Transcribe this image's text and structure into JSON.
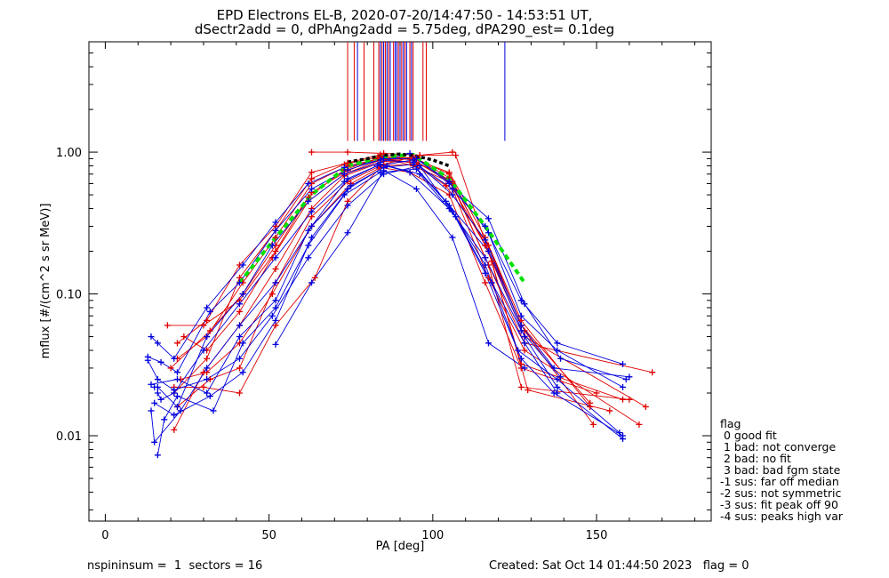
{
  "title": {
    "line1": "EPD Electrons EL-B, 2020-07-20/14:47:50 - 14:53:51 UT,",
    "line2": "dSectr2add = 0, dPhAng2add = 5.75deg, dPA290_est=   0.1deg"
  },
  "footer": {
    "left": "nspininsum =  1  sectors = 16",
    "right": "Created: Sat Oct 14 01:44:50 2023   flag = 0"
  },
  "legend": {
    "title": "flag",
    "items": [
      " 0 good fit",
      " 1 bad: not converge",
      " 2 bad: no fit",
      " 3 bad: bad fgm state",
      "-1 sus: far off median",
      "-2 sus: not symmetric",
      "-3 sus: fit peak off 90",
      "-4 sus: peaks high var"
    ]
  },
  "chart_data": {
    "type": "line",
    "xlabel": "PA [deg]",
    "ylabel": "mflux [#/(cm^2 s sr MeV)]",
    "xlim": [
      -5,
      185
    ],
    "ylim": [
      0.0025,
      6.0
    ],
    "yscale": "log",
    "xticks": [
      "0",
      "50",
      "100",
      "150"
    ],
    "xtick_values": [
      0,
      50,
      100,
      150
    ],
    "yticks": [
      "0.01",
      "0.10",
      "1.00"
    ],
    "ytick_values": [
      0.01,
      0.1,
      1.0
    ],
    "colors": {
      "red": "#e00000",
      "blue": "#0000dd",
      "green": "#00e000",
      "black": "#000000"
    },
    "marker_lines": {
      "y_range": [
        1.2,
        6.0
      ],
      "red_x": [
        74,
        76,
        79,
        82,
        83.5,
        84.5,
        85.5,
        86.5,
        88,
        89.5,
        90.5,
        91.5,
        93,
        94,
        97,
        98
      ],
      "blue_x": [
        77,
        84,
        85,
        86,
        87,
        88.5,
        89,
        90,
        91,
        92,
        93.5,
        122
      ]
    },
    "series": [
      {
        "color": "red",
        "x": [
          22,
          31,
          41,
          52,
          63,
          74,
          84,
          94,
          105,
          116,
          127,
          148
        ],
        "values": [
          0.045,
          0.065,
          0.16,
          0.3,
          0.72,
          0.84,
          0.96,
          0.9,
          0.72,
          0.25,
          0.065,
          0.016
        ]
      },
      {
        "color": "red",
        "x": [
          21,
          31,
          41,
          52,
          63,
          73,
          84,
          94,
          106,
          117,
          127,
          158
        ],
        "values": [
          0.02,
          0.035,
          0.13,
          0.28,
          0.65,
          0.82,
          0.93,
          0.88,
          0.62,
          0.2,
          0.032,
          0.018
        ]
      },
      {
        "color": "red",
        "x": [
          20,
          32,
          42,
          52,
          63,
          74,
          83,
          94,
          105,
          116,
          128,
          165
        ],
        "values": [
          0.03,
          0.055,
          0.1,
          0.22,
          0.52,
          0.74,
          0.9,
          0.92,
          0.7,
          0.22,
          0.05,
          0.016
        ]
      },
      {
        "color": "red",
        "x": [
          24,
          31,
          41,
          51,
          62,
          73,
          84,
          95,
          105,
          116,
          128,
          167
        ],
        "values": [
          0.05,
          0.04,
          0.075,
          0.18,
          0.45,
          0.7,
          0.88,
          0.9,
          0.66,
          0.18,
          0.045,
          0.028
        ]
      },
      {
        "color": "red",
        "x": [
          21,
          30,
          41,
          52,
          63,
          73,
          85,
          95,
          106,
          117,
          127,
          160
        ],
        "values": [
          0.011,
          0.028,
          0.06,
          0.15,
          0.4,
          0.68,
          0.86,
          0.85,
          0.6,
          0.16,
          0.022,
          0.018
        ]
      },
      {
        "color": "red",
        "x": [
          22,
          32,
          41,
          52,
          63,
          74,
          84,
          95,
          106,
          117,
          128,
          163
        ],
        "values": [
          0.016,
          0.025,
          0.03,
          0.12,
          0.35,
          0.62,
          0.8,
          0.82,
          0.55,
          0.13,
          0.04,
          0.012
        ]
      },
      {
        "color": "red",
        "x": [
          19,
          30,
          41,
          52,
          62,
          73,
          84,
          94,
          105,
          117,
          128,
          149
        ],
        "values": [
          0.06,
          0.06,
          0.09,
          0.2,
          0.48,
          0.75,
          0.92,
          0.8,
          0.62,
          0.2,
          0.055,
          0.012
        ]
      },
      {
        "color": "red",
        "x": [
          23,
          31,
          41,
          51,
          63,
          75,
          84,
          93,
          105,
          116,
          127,
          150
        ],
        "values": [
          0.025,
          0.028,
          0.045,
          0.1,
          0.3,
          0.6,
          0.78,
          0.72,
          0.5,
          0.12,
          0.03,
          0.02
        ]
      },
      {
        "color": "red",
        "x": [
          21,
          30,
          41,
          52,
          64,
          74,
          85,
          96,
          107,
          118,
          129,
          154
        ],
        "values": [
          0.022,
          0.022,
          0.02,
          0.06,
          0.13,
          0.45,
          0.82,
          0.95,
          0.95,
          0.17,
          0.021,
          0.015
        ]
      },
      {
        "color": "red",
        "x": [
          22,
          31,
          42,
          52,
          63,
          74,
          84,
          93,
          104,
          117,
          127,
          148
        ],
        "values": [
          0.035,
          0.05,
          0.12,
          0.25,
          0.6,
          0.8,
          0.9,
          0.85,
          0.58,
          0.22,
          0.06,
          0.017
        ]
      },
      {
        "color": "red",
        "x": [
          63,
          74,
          85,
          96,
          106
        ],
        "values": [
          1.0,
          1.0,
          0.98,
          0.95,
          1.0
        ]
      },
      {
        "color": "blue",
        "x": [
          14,
          16,
          21,
          31,
          42,
          52,
          62,
          73,
          84,
          94,
          106,
          116,
          127,
          138,
          158
        ],
        "values": [
          0.05,
          0.045,
          0.035,
          0.08,
          0.16,
          0.32,
          0.6,
          0.78,
          0.88,
          0.85,
          0.55,
          0.3,
          0.09,
          0.045,
          0.032
        ]
      },
      {
        "color": "blue",
        "x": [
          13,
          17,
          22,
          32,
          41,
          52,
          63,
          74,
          85,
          95,
          105,
          117,
          128,
          139,
          159
        ],
        "values": [
          0.036,
          0.033,
          0.028,
          0.075,
          0.12,
          0.28,
          0.55,
          0.75,
          0.9,
          0.9,
          0.6,
          0.34,
          0.085,
          0.035,
          0.025
        ]
      },
      {
        "color": "blue",
        "x": [
          15,
          16,
          22,
          31,
          42,
          51,
          62,
          73,
          84,
          93,
          105,
          117,
          127,
          138,
          158
        ],
        "values": [
          0.022,
          0.022,
          0.016,
          0.05,
          0.1,
          0.22,
          0.45,
          0.7,
          0.85,
          0.98,
          0.62,
          0.27,
          0.07,
          0.04,
          0.022
        ]
      },
      {
        "color": "blue",
        "x": [
          16,
          17,
          21,
          30,
          41,
          52,
          63,
          73,
          83,
          94,
          106,
          116,
          127,
          137,
          160
        ],
        "values": [
          0.02,
          0.018,
          0.02,
          0.04,
          0.085,
          0.18,
          0.38,
          0.62,
          0.8,
          0.88,
          0.5,
          0.24,
          0.06,
          0.03,
          0.026
        ]
      },
      {
        "color": "blue",
        "x": [
          14,
          15,
          23,
          31,
          41,
          52,
          63,
          74,
          85,
          94,
          104,
          117,
          128,
          138,
          158
        ],
        "values": [
          0.015,
          0.009,
          0.015,
          0.03,
          0.06,
          0.12,
          0.3,
          0.55,
          0.78,
          0.82,
          0.45,
          0.2,
          0.05,
          0.022,
          0.0095
        ]
      },
      {
        "color": "blue",
        "x": [
          16,
          18,
          22,
          33,
          42,
          52,
          62,
          73,
          84,
          95,
          105,
          116,
          126,
          138,
          157
        ],
        "values": [
          0.0073,
          0.013,
          0.019,
          0.015,
          0.045,
          0.08,
          0.22,
          0.5,
          0.72,
          0.76,
          0.42,
          0.16,
          0.04,
          0.025,
          0.0105
        ]
      },
      {
        "color": "blue",
        "x": [
          13,
          16,
          21,
          31,
          41,
          51,
          62,
          74,
          85,
          96,
          106,
          116,
          127,
          137,
          158
        ],
        "values": [
          0.034,
          0.025,
          0.021,
          0.025,
          0.035,
          0.07,
          0.18,
          0.42,
          0.7,
          0.8,
          0.38,
          0.14,
          0.035,
          0.02,
          0.01
        ]
      },
      {
        "color": "blue",
        "x": [
          52,
          63,
          74,
          85,
          95,
          106,
          117,
          128
        ],
        "values": [
          0.044,
          0.12,
          0.27,
          0.74,
          0.55,
          0.25,
          0.045,
          0.03
        ]
      },
      {
        "color": "blue",
        "x": [
          14,
          22,
          31,
          41,
          52,
          62,
          74,
          84,
          93,
          105,
          116,
          127,
          139
        ],
        "values": [
          0.023,
          0.025,
          0.02,
          0.05,
          0.09,
          0.28,
          0.65,
          0.82,
          0.72,
          0.4,
          0.18,
          0.055,
          0.026
        ]
      },
      {
        "color": "blue",
        "x": [
          15,
          21,
          32,
          42,
          52,
          63,
          75,
          86,
          96,
          107,
          118,
          128,
          138
        ],
        "values": [
          0.017,
          0.014,
          0.019,
          0.028,
          0.065,
          0.25,
          0.58,
          0.8,
          0.7,
          0.35,
          0.12,
          0.045,
          0.02
        ]
      },
      {
        "color": "green",
        "x": [
          41,
          52,
          63,
          74,
          85,
          94,
          105,
          116,
          128
        ],
        "values": [
          0.12,
          0.25,
          0.5,
          0.8,
          0.93,
          0.96,
          0.65,
          0.3,
          0.12
        ]
      },
      {
        "color": "black",
        "x": [
          74,
          80,
          85,
          90,
          95,
          100,
          105
        ],
        "values": [
          0.85,
          0.9,
          0.95,
          0.97,
          0.94,
          0.88,
          0.8
        ]
      }
    ]
  }
}
